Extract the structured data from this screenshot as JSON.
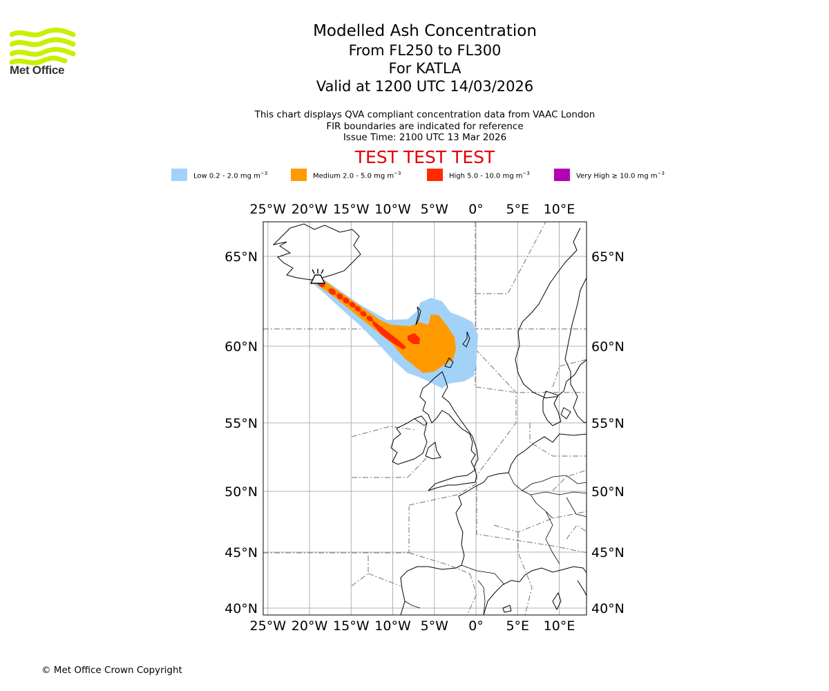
{
  "brand": {
    "logo_text": "Met Office"
  },
  "title": {
    "main": "Modelled Ash Concentration",
    "levels": "From FL250 to FL300",
    "volcano": "For KATLA",
    "valid": "Valid at 1200 UTC 14/03/2026"
  },
  "subtitle": {
    "line1": "This chart displays QVA compliant concentration data from VAAC London",
    "line2": "FIR boundaries are indicated for reference",
    "line3": "Issue Time: 2100 UTC 13 Mar 2026"
  },
  "warning": "TEST TEST TEST",
  "legend": [
    {
      "label": "Low 0.2 - 2.0 mg m",
      "unit_exp": "−3",
      "color": "#a3d2f9"
    },
    {
      "label": "Medium 2.0 - 5.0 mg m",
      "unit_exp": "−3",
      "color": "#ff9a00"
    },
    {
      "label": "High 5.0 - 10.0 mg m",
      "unit_exp": "−3",
      "color": "#ff2a00"
    },
    {
      "label": "Very High ≥ 10.0 mg m",
      "unit_exp": "−3",
      "color": "#b400b4"
    }
  ],
  "map": {
    "lon_labels": [
      "25°W",
      "20°W",
      "15°W",
      "10°W",
      "5°W",
      "0°",
      "5°E",
      "10°E"
    ],
    "lat_labels": [
      "65°N",
      "60°N",
      "55°N",
      "50°N",
      "45°N",
      "40°N"
    ],
    "lon_values": [
      -25,
      -20,
      -15,
      -10,
      -5,
      0,
      5,
      10
    ],
    "lat_values": [
      65,
      60,
      55,
      50,
      45,
      40
    ]
  },
  "copyright": "© Met Office Crown Copyright"
}
